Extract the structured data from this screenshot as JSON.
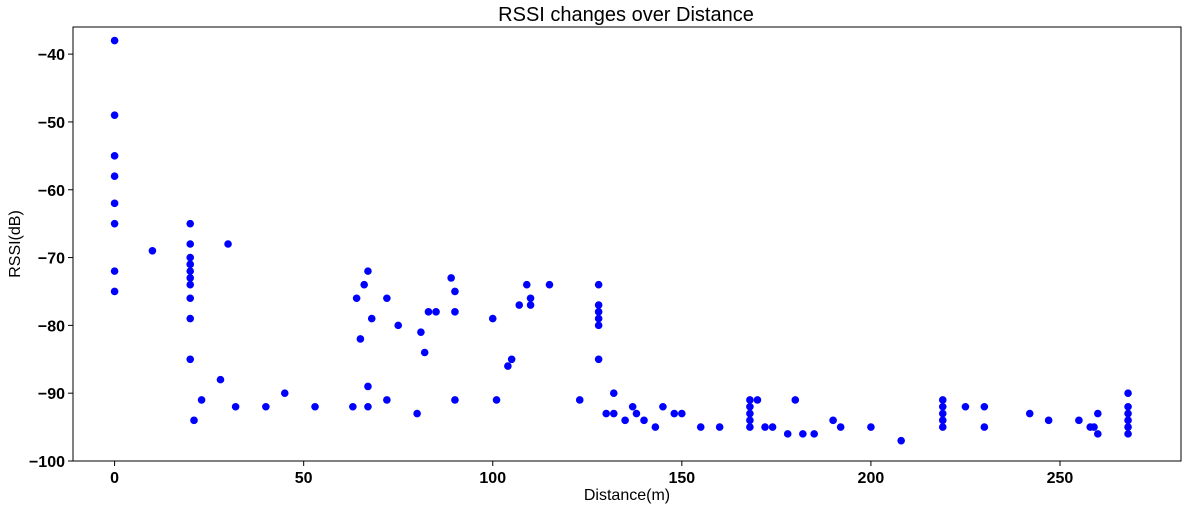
{
  "chart_data": {
    "type": "scatter",
    "title": "RSSI changes over Distance",
    "xlabel": "Distance(m)",
    "ylabel": "RSSI(dB)",
    "xlim": [
      -11,
      282
    ],
    "ylim": [
      -100,
      -36
    ],
    "xticks": [
      0,
      50,
      100,
      150,
      200,
      250
    ],
    "yticks": [
      -100,
      -90,
      -80,
      -70,
      -60,
      -50,
      -40
    ],
    "ytick_labels": [
      "−100",
      "−90",
      "−80",
      "−70",
      "−60",
      "−50",
      "−40"
    ],
    "grid": false,
    "marker_color": "#0000ff",
    "series": [
      {
        "points": [
          [
            0,
            -38
          ],
          [
            0,
            -49
          ],
          [
            0,
            -55
          ],
          [
            0,
            -58
          ],
          [
            0,
            -62
          ],
          [
            0,
            -65
          ],
          [
            0,
            -72
          ],
          [
            0,
            -75
          ],
          [
            10,
            -69
          ],
          [
            20,
            -65
          ],
          [
            20,
            -68
          ],
          [
            20,
            -70
          ],
          [
            20,
            -71
          ],
          [
            20,
            -72
          ],
          [
            20,
            -73
          ],
          [
            20,
            -74
          ],
          [
            20,
            -76
          ],
          [
            20,
            -79
          ],
          [
            20,
            -85
          ],
          [
            21,
            -94
          ],
          [
            23,
            -91
          ],
          [
            28,
            -88
          ],
          [
            30,
            -68
          ],
          [
            32,
            -92
          ],
          [
            40,
            -92
          ],
          [
            45,
            -90
          ],
          [
            53,
            -92
          ],
          [
            63,
            -92
          ],
          [
            64,
            -76
          ],
          [
            65,
            -82
          ],
          [
            66,
            -74
          ],
          [
            67,
            -72
          ],
          [
            67,
            -89
          ],
          [
            67,
            -92
          ],
          [
            68,
            -79
          ],
          [
            72,
            -76
          ],
          [
            72,
            -91
          ],
          [
            75,
            -80
          ],
          [
            80,
            -93
          ],
          [
            81,
            -81
          ],
          [
            82,
            -84
          ],
          [
            83,
            -78
          ],
          [
            85,
            -78
          ],
          [
            89,
            -73
          ],
          [
            90,
            -75
          ],
          [
            90,
            -78
          ],
          [
            90,
            -91
          ],
          [
            100,
            -79
          ],
          [
            101,
            -91
          ],
          [
            104,
            -86
          ],
          [
            105,
            -85
          ],
          [
            107,
            -77
          ],
          [
            109,
            -74
          ],
          [
            110,
            -76
          ],
          [
            110,
            -77
          ],
          [
            115,
            -74
          ],
          [
            123,
            -91
          ],
          [
            128,
            -74
          ],
          [
            128,
            -77
          ],
          [
            128,
            -78
          ],
          [
            128,
            -79
          ],
          [
            128,
            -80
          ],
          [
            128,
            -85
          ],
          [
            130,
            -93
          ],
          [
            132,
            -90
          ],
          [
            132,
            -93
          ],
          [
            135,
            -94
          ],
          [
            137,
            -92
          ],
          [
            138,
            -93
          ],
          [
            140,
            -94
          ],
          [
            143,
            -95
          ],
          [
            145,
            -92
          ],
          [
            148,
            -93
          ],
          [
            150,
            -93
          ],
          [
            155,
            -95
          ],
          [
            160,
            -95
          ],
          [
            168,
            -91
          ],
          [
            168,
            -92
          ],
          [
            168,
            -93
          ],
          [
            168,
            -94
          ],
          [
            168,
            -95
          ],
          [
            170,
            -91
          ],
          [
            172,
            -95
          ],
          [
            174,
            -95
          ],
          [
            178,
            -96
          ],
          [
            180,
            -91
          ],
          [
            182,
            -96
          ],
          [
            185,
            -96
          ],
          [
            190,
            -94
          ],
          [
            192,
            -95
          ],
          [
            200,
            -95
          ],
          [
            208,
            -97
          ],
          [
            219,
            -91
          ],
          [
            219,
            -92
          ],
          [
            219,
            -93
          ],
          [
            219,
            -94
          ],
          [
            219,
            -95
          ],
          [
            225,
            -92
          ],
          [
            230,
            -92
          ],
          [
            230,
            -95
          ],
          [
            242,
            -93
          ],
          [
            247,
            -94
          ],
          [
            255,
            -94
          ],
          [
            258,
            -95
          ],
          [
            259,
            -95
          ],
          [
            260,
            -96
          ],
          [
            260,
            -93
          ],
          [
            268,
            -90
          ],
          [
            268,
            -92
          ],
          [
            268,
            -93
          ],
          [
            268,
            -94
          ],
          [
            268,
            -95
          ],
          [
            268,
            -96
          ]
        ]
      }
    ]
  }
}
